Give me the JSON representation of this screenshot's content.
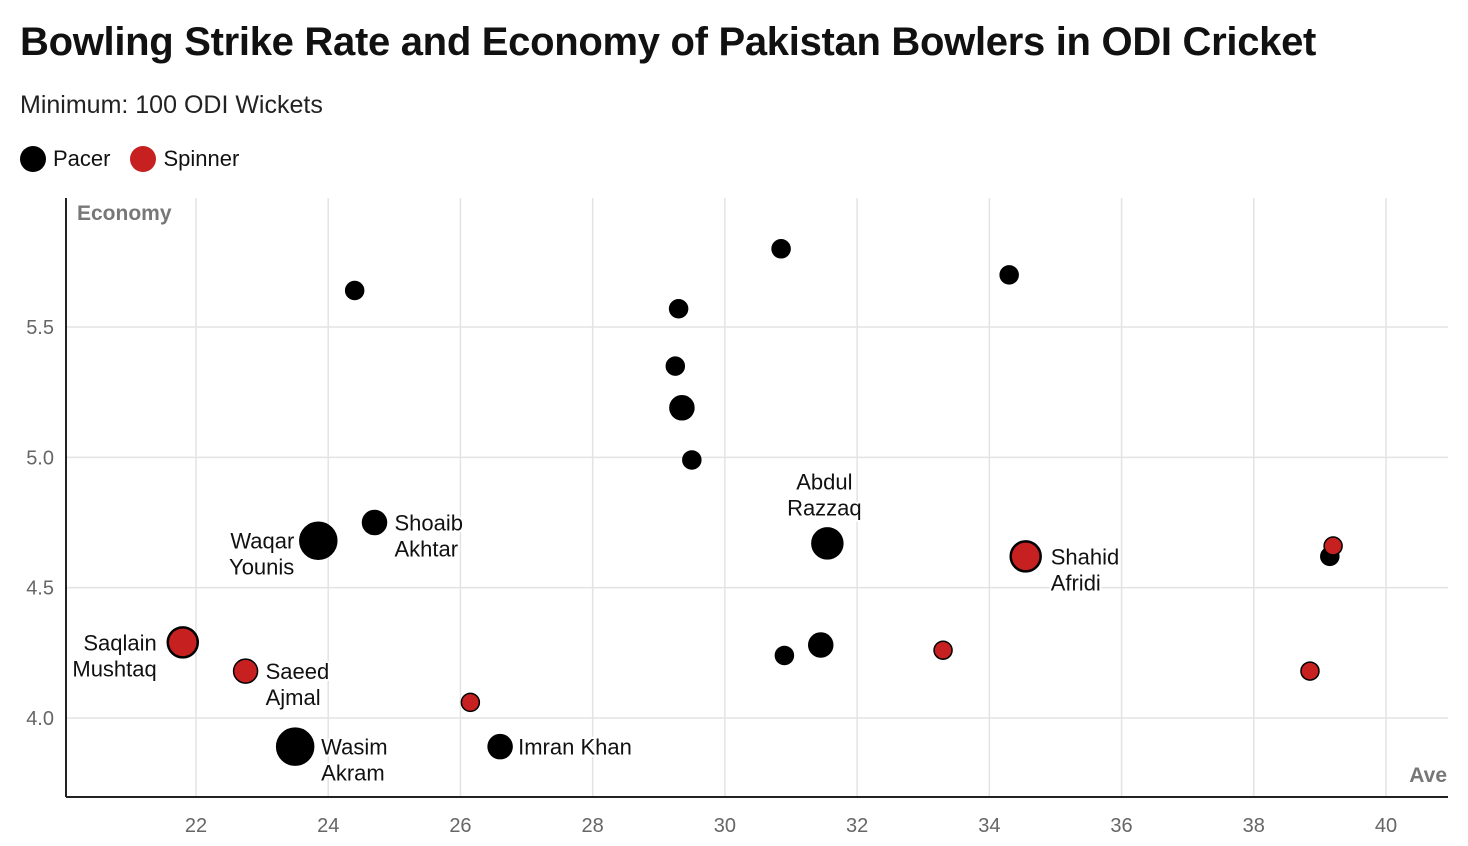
{
  "chart_data": {
    "type": "scatter",
    "title": "Bowling Strike Rate and Economy of Pakistan Bowlers in ODI Cricket",
    "subtitle": "Minimum: 100 ODI Wickets",
    "xlabel": "Ave",
    "ylabel": "Economy",
    "xlim": [
      20,
      41
    ],
    "ylim": [
      3.7,
      5.95
    ],
    "xticks": [
      "22",
      "24",
      "26",
      "28",
      "30",
      "32",
      "34",
      "36",
      "38",
      "40"
    ],
    "yticks": [
      "4.0",
      "4.5",
      "5.0",
      "5.5"
    ],
    "grid": true,
    "legend_placement": "top-left",
    "series": [
      {
        "name": "Pacer",
        "color": "#000000",
        "points": [
          {
            "x": 24.4,
            "y": 5.64,
            "size": "small",
            "label": ""
          },
          {
            "x": 30.85,
            "y": 5.8,
            "size": "small",
            "label": ""
          },
          {
            "x": 34.3,
            "y": 5.7,
            "size": "small",
            "label": ""
          },
          {
            "x": 29.3,
            "y": 5.57,
            "size": "small",
            "label": ""
          },
          {
            "x": 29.25,
            "y": 5.35,
            "size": "small",
            "label": ""
          },
          {
            "x": 29.35,
            "y": 5.19,
            "size": "medium",
            "label": ""
          },
          {
            "x": 29.5,
            "y": 4.99,
            "size": "small",
            "label": ""
          },
          {
            "x": 23.85,
            "y": 4.68,
            "size": "xlarge",
            "label": "Waqar Younis"
          },
          {
            "x": 24.7,
            "y": 4.75,
            "size": "medium",
            "label": "Shoaib Akhtar"
          },
          {
            "x": 31.55,
            "y": 4.67,
            "size": "large",
            "label": "Abdul Razzaq"
          },
          {
            "x": 39.15,
            "y": 4.62,
            "size": "small",
            "label": ""
          },
          {
            "x": 31.45,
            "y": 4.28,
            "size": "medium",
            "label": ""
          },
          {
            "x": 30.9,
            "y": 4.24,
            "size": "small",
            "label": ""
          },
          {
            "x": 23.5,
            "y": 3.89,
            "size": "xlarge",
            "label": "Wasim Akram"
          },
          {
            "x": 26.6,
            "y": 3.89,
            "size": "medium",
            "label": "Imran Khan"
          }
        ]
      },
      {
        "name": "Spinner",
        "color": "#c62020",
        "points": [
          {
            "x": 21.8,
            "y": 4.29,
            "size": "large",
            "label": "Saqlain Mushtaq"
          },
          {
            "x": 22.75,
            "y": 4.18,
            "size": "medium",
            "label": "Saeed Ajmal"
          },
          {
            "x": 26.15,
            "y": 4.06,
            "size": "small",
            "label": ""
          },
          {
            "x": 33.3,
            "y": 4.26,
            "size": "small",
            "label": ""
          },
          {
            "x": 34.55,
            "y": 4.62,
            "size": "large",
            "label": "Shahid Afridi"
          },
          {
            "x": 39.2,
            "y": 4.66,
            "size": "small",
            "label": ""
          },
          {
            "x": 38.85,
            "y": 4.18,
            "size": "small",
            "label": ""
          }
        ]
      }
    ]
  }
}
